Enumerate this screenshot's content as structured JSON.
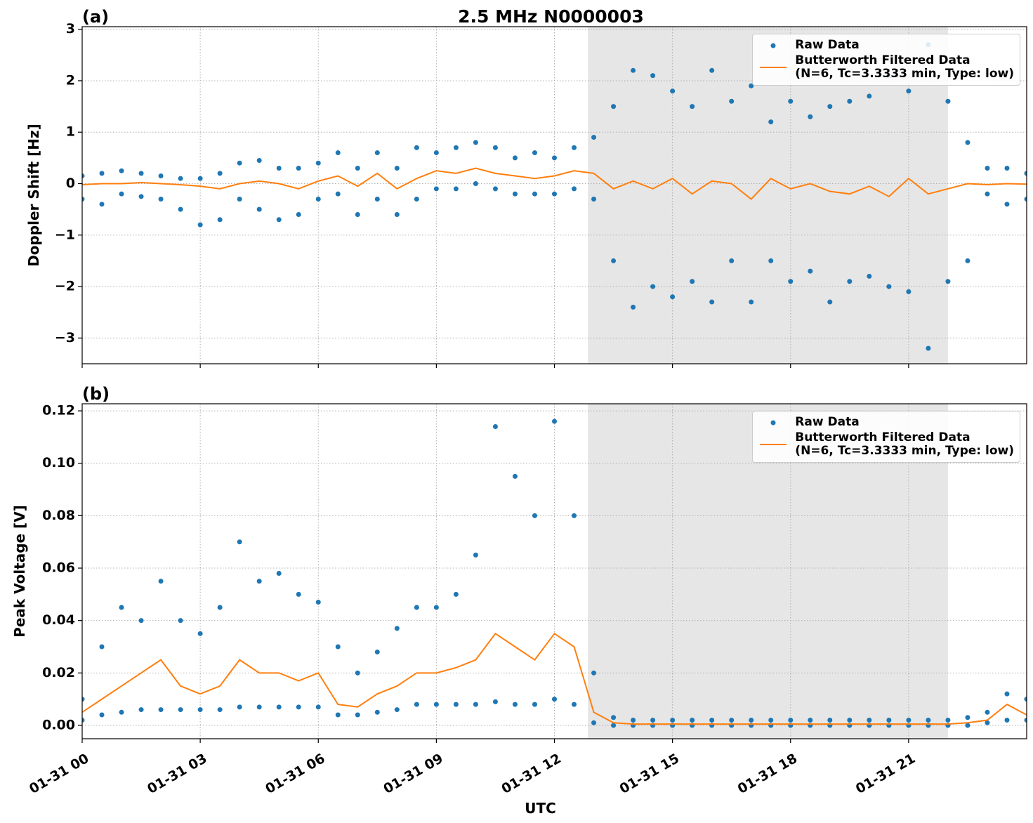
{
  "chart_data": [
    {
      "type": "line",
      "label": "(a)",
      "title": "2.5 MHz N0000003",
      "ylabel": "Doppler Shift [Hz]",
      "xlim": [
        0,
        24
      ],
      "ylim": [
        -3.5,
        3.05
      ],
      "xticks": [
        0,
        3,
        6,
        9,
        12,
        15,
        18,
        21
      ],
      "yticks": [
        {
          "value": -3,
          "label": "−3"
        },
        {
          "value": -2,
          "label": "−2"
        },
        {
          "value": -1,
          "label": "−1"
        },
        0,
        1,
        2,
        3
      ],
      "grid": true,
      "legend": "upper right",
      "shaded_span": [
        12.85,
        22.0
      ],
      "shade_color": "#e6e6e6",
      "series": [
        {
          "name": "Raw Data",
          "kind": "scatter",
          "color": "#1f77b4",
          "x": [
            0,
            0,
            0.5,
            0.5,
            1,
            1,
            1.5,
            1.5,
            2,
            2,
            2.5,
            2.5,
            3,
            3,
            3.5,
            3.5,
            4,
            4,
            4.5,
            4.5,
            5,
            5,
            5.5,
            5.5,
            6,
            6,
            6.5,
            6.5,
            7,
            7,
            7.5,
            7.5,
            8,
            8,
            8.5,
            8.5,
            9,
            9,
            9.5,
            9.5,
            10,
            10,
            10.5,
            10.5,
            11,
            11,
            11.5,
            11.5,
            12,
            12,
            12.5,
            12.5,
            13,
            13,
            13.5,
            13.5,
            14,
            14,
            14.5,
            14.5,
            15,
            15,
            15.5,
            15.5,
            16,
            16,
            16.5,
            16.5,
            17,
            17,
            17.5,
            17.5,
            18,
            18,
            18.5,
            18.5,
            19,
            19,
            19.5,
            19.5,
            20,
            20,
            20.5,
            20.5,
            21,
            21,
            21.5,
            21.5,
            22,
            22,
            22.5,
            22.5,
            23,
            23,
            23.5,
            23.5,
            24,
            24
          ],
          "values": [
            0.15,
            -0.3,
            0.2,
            -0.4,
            0.25,
            -0.2,
            0.2,
            -0.25,
            0.15,
            -0.3,
            0.1,
            -0.5,
            0.1,
            -0.8,
            0.2,
            -0.7,
            0.4,
            -0.3,
            0.45,
            -0.5,
            0.3,
            -0.7,
            0.3,
            -0.6,
            0.4,
            -0.3,
            0.6,
            -0.2,
            0.3,
            -0.6,
            0.6,
            -0.3,
            0.3,
            -0.6,
            0.7,
            -0.3,
            0.6,
            -0.1,
            0.7,
            -0.1,
            0.8,
            0,
            0.7,
            -0.1,
            0.5,
            -0.2,
            0.6,
            -0.2,
            0.5,
            -0.2,
            0.7,
            -0.1,
            0.9,
            -0.3,
            1.5,
            -1.5,
            2.2,
            -2.4,
            2.1,
            -2.0,
            1.8,
            -2.2,
            1.5,
            -1.9,
            2.2,
            -2.3,
            1.6,
            -1.5,
            1.9,
            -2.3,
            1.2,
            -1.5,
            1.6,
            -1.9,
            1.3,
            -1.7,
            1.5,
            -2.3,
            1.6,
            -1.9,
            1.7,
            -1.8,
            2.1,
            -2.0,
            1.8,
            -2.1,
            2.7,
            -3.2,
            1.6,
            -1.9,
            0.8,
            -1.5,
            0.3,
            -0.2,
            0.3,
            -0.4,
            0.2,
            -0.3
          ]
        },
        {
          "name": "Butterworth Filtered Data\n(N=6, Tc=3.3333 min, Type: low)",
          "kind": "line",
          "color": "#ff7f0e",
          "x": [
            0,
            0.5,
            1,
            1.5,
            2,
            2.5,
            3,
            3.5,
            4,
            4.5,
            5,
            5.5,
            6,
            6.5,
            7,
            7.5,
            8,
            8.5,
            9,
            9.5,
            10,
            10.5,
            11,
            11.5,
            12,
            12.5,
            13,
            13.5,
            14,
            14.5,
            15,
            15.5,
            16,
            16.5,
            17,
            17.5,
            18,
            18.5,
            19,
            19.5,
            20,
            20.5,
            21,
            21.5,
            22,
            22.5,
            23,
            23.5,
            24
          ],
          "values": [
            -0.02,
            0,
            0,
            0.02,
            0,
            -0.02,
            -0.05,
            -0.1,
            0,
            0.05,
            0,
            -0.1,
            0.05,
            0.15,
            -0.05,
            0.2,
            -0.1,
            0.1,
            0.25,
            0.2,
            0.3,
            0.2,
            0.15,
            0.1,
            0.15,
            0.25,
            0.2,
            -0.1,
            0.05,
            -0.1,
            0.1,
            -0.2,
            0.05,
            0,
            -0.3,
            0.1,
            -0.1,
            0,
            -0.15,
            -0.2,
            -0.05,
            -0.25,
            0.1,
            -0.2,
            -0.1,
            0,
            -0.02,
            0,
            -0.01
          ]
        }
      ]
    },
    {
      "type": "line",
      "label": "(b)",
      "ylabel": "Peak Voltage [V]",
      "xlabel": "UTC",
      "xlim": [
        0,
        24
      ],
      "ylim": [
        -0.0051,
        0.1227
      ],
      "xticks": [
        {
          "value": 0,
          "label": "01-31 00"
        },
        {
          "value": 3,
          "label": "01-31 03"
        },
        {
          "value": 6,
          "label": "01-31 06"
        },
        {
          "value": 9,
          "label": "01-31 09"
        },
        {
          "value": 12,
          "label": "01-31 12"
        },
        {
          "value": 15,
          "label": "01-31 15"
        },
        {
          "value": 18,
          "label": "01-31 18"
        },
        {
          "value": 21,
          "label": "01-31 21"
        }
      ],
      "yticks": [
        {
          "value": 0,
          "label": "0.00"
        },
        0.02,
        0.04,
        0.06,
        0.08,
        {
          "value": 0.1,
          "label": "0.10"
        },
        0.12
      ],
      "grid": true,
      "legend": "upper right",
      "shaded_span": [
        12.85,
        22.0
      ],
      "shade_color": "#e6e6e6",
      "series": [
        {
          "name": "Raw Data",
          "kind": "scatter",
          "color": "#1f77b4",
          "x": [
            0,
            0,
            0.5,
            0.5,
            1,
            1,
            1.5,
            1.5,
            2,
            2,
            2.5,
            2.5,
            3,
            3,
            3.5,
            3.5,
            4,
            4,
            4.5,
            4.5,
            5,
            5,
            5.5,
            5.5,
            6,
            6,
            6.5,
            6.5,
            7,
            7,
            7.5,
            7.5,
            8,
            8,
            8.5,
            8.5,
            9,
            9,
            9.5,
            9.5,
            10,
            10,
            10.5,
            10.5,
            11,
            11,
            11.5,
            11.5,
            12,
            12,
            12.5,
            12.5,
            13,
            13,
            13.5,
            13.5,
            14,
            14,
            14.5,
            14.5,
            15,
            15,
            15.5,
            15.5,
            16,
            16,
            16.5,
            16.5,
            17,
            17,
            17.5,
            17.5,
            18,
            18,
            18.5,
            18.5,
            19,
            19,
            19.5,
            19.5,
            20,
            20,
            20.5,
            20.5,
            21,
            21,
            21.5,
            21.5,
            22,
            22,
            22.5,
            22.5,
            23,
            23,
            23.5,
            23.5,
            24,
            24
          ],
          "values": [
            0.01,
            0.002,
            0.03,
            0.004,
            0.045,
            0.005,
            0.04,
            0.006,
            0.055,
            0.006,
            0.04,
            0.006,
            0.035,
            0.006,
            0.045,
            0.006,
            0.07,
            0.007,
            0.055,
            0.007,
            0.058,
            0.007,
            0.05,
            0.007,
            0.047,
            0.007,
            0.03,
            0.004,
            0.02,
            0.004,
            0.028,
            0.005,
            0.037,
            0.006,
            0.045,
            0.008,
            0.045,
            0.008,
            0.05,
            0.008,
            0.065,
            0.008,
            0.114,
            0.009,
            0.095,
            0.008,
            0.08,
            0.008,
            0.116,
            0.01,
            0.08,
            0.008,
            0.02,
            0.001,
            0.003,
            0,
            0.002,
            0,
            0.002,
            0,
            0.002,
            0,
            0.002,
            0,
            0.002,
            0,
            0.002,
            0,
            0.002,
            0,
            0.002,
            0,
            0.002,
            0,
            0.002,
            0,
            0.002,
            0,
            0.002,
            0,
            0.002,
            0,
            0.002,
            0,
            0.002,
            0,
            0.002,
            0,
            0.002,
            0,
            0.003,
            0,
            0.005,
            0.001,
            0.012,
            0.002,
            0.01,
            0.002
          ]
        },
        {
          "name": "Butterworth Filtered Data\n(N=6, Tc=3.3333 min, Type: low)",
          "kind": "line",
          "color": "#ff7f0e",
          "x": [
            0,
            0.5,
            1,
            1.5,
            2,
            2.5,
            3,
            3.5,
            4,
            4.5,
            5,
            5.5,
            6,
            6.5,
            7,
            7.5,
            8,
            8.5,
            9,
            9.5,
            10,
            10.5,
            11,
            11.5,
            12,
            12.5,
            13,
            13.5,
            14,
            14.5,
            15,
            15.5,
            16,
            16.5,
            17,
            17.5,
            18,
            18.5,
            19,
            19.5,
            20,
            20.5,
            21,
            21.5,
            22,
            22.5,
            23,
            23.5,
            24
          ],
          "values": [
            0.005,
            0.01,
            0.015,
            0.02,
            0.025,
            0.015,
            0.012,
            0.015,
            0.025,
            0.02,
            0.02,
            0.017,
            0.02,
            0.008,
            0.007,
            0.012,
            0.015,
            0.02,
            0.02,
            0.022,
            0.025,
            0.035,
            0.03,
            0.025,
            0.035,
            0.03,
            0.005,
            0.001,
            0.0005,
            0.0005,
            0.0005,
            0.0005,
            0.0005,
            0.0005,
            0.0005,
            0.0005,
            0.0005,
            0.0005,
            0.0005,
            0.0005,
            0.0005,
            0.0005,
            0.0005,
            0.0005,
            0.0005,
            0.001,
            0.002,
            0.008,
            0.004
          ]
        }
      ]
    }
  ]
}
